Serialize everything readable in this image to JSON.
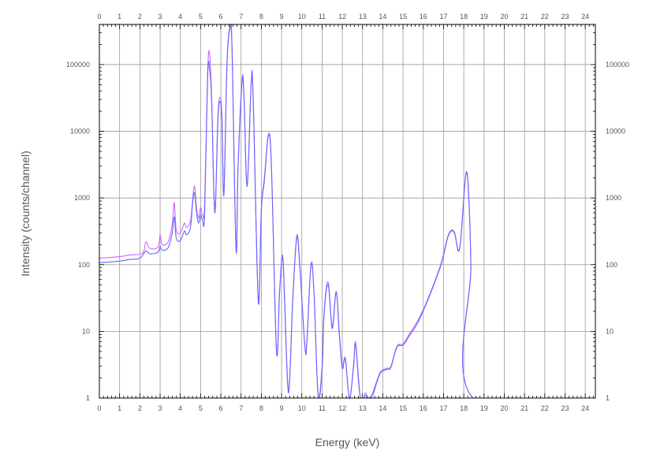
{
  "chart_data": {
    "type": "line",
    "xlabel": "Energy (keV)",
    "ylabel": "Intensity (counts/channel)",
    "xlim": [
      0,
      24.5
    ],
    "ylim": [
      1,
      400000
    ],
    "y_scale": "log",
    "grid": true,
    "x_ticks": [
      "0",
      "1",
      "2",
      "3",
      "4",
      "5",
      "6",
      "7",
      "8",
      "9",
      "10",
      "11",
      "12",
      "13",
      "14",
      "15",
      "16",
      "17",
      "18",
      "19",
      "20",
      "21",
      "22",
      "23",
      "24"
    ],
    "y_ticks": [
      "1",
      "10",
      "100",
      "1000",
      "10000",
      "100000"
    ],
    "series": [
      {
        "color": "#cc66ff",
        "points": [
          [
            0,
            125
          ],
          [
            1,
            132
          ],
          [
            1.5,
            140
          ],
          [
            2,
            143
          ],
          [
            2.2,
            160
          ],
          [
            2.3,
            220
          ],
          [
            2.5,
            175
          ],
          [
            2.9,
            185
          ],
          [
            3.0,
            280
          ],
          [
            3.1,
            200
          ],
          [
            3.4,
            220
          ],
          [
            3.6,
            400
          ],
          [
            3.7,
            850
          ],
          [
            3.8,
            330
          ],
          [
            4.0,
            300
          ],
          [
            4.2,
            420
          ],
          [
            4.3,
            360
          ],
          [
            4.5,
            450
          ],
          [
            4.6,
            900
          ],
          [
            4.7,
            1500
          ],
          [
            4.8,
            700
          ],
          [
            4.9,
            500
          ],
          [
            5.0,
            720
          ],
          [
            5.1,
            560
          ],
          [
            5.2,
            800
          ],
          [
            5.35,
            80000
          ],
          [
            5.45,
            140000
          ],
          [
            5.55,
            30000
          ],
          [
            5.7,
            650
          ],
          [
            5.85,
            15000
          ],
          [
            5.95,
            32000
          ],
          [
            6.05,
            18000
          ],
          [
            6.15,
            1200
          ],
          [
            6.3,
            100000
          ],
          [
            6.45,
            380000
          ],
          [
            6.55,
            200000
          ],
          [
            6.75,
            180
          ],
          [
            6.85,
            3000
          ],
          [
            7.05,
            60000
          ],
          [
            7.15,
            30000
          ],
          [
            7.3,
            1600
          ],
          [
            7.5,
            55000
          ],
          [
            7.6,
            30000
          ],
          [
            7.85,
            30
          ],
          [
            8.0,
            700
          ],
          [
            8.15,
            2000
          ],
          [
            8.35,
            9000
          ],
          [
            8.5,
            3000
          ],
          [
            8.75,
            5
          ],
          [
            8.9,
            40
          ],
          [
            9.05,
            140
          ],
          [
            9.15,
            30
          ],
          [
            9.3,
            1.7
          ],
          [
            9.4,
            2
          ],
          [
            9.55,
            30
          ],
          [
            9.75,
            270
          ],
          [
            9.9,
            100
          ],
          [
            10.15,
            6
          ],
          [
            10.25,
            7
          ],
          [
            10.45,
            100
          ],
          [
            10.6,
            40
          ],
          [
            10.8,
            1.2
          ],
          [
            11.0,
            3
          ],
          [
            11.1,
            20
          ],
          [
            11.3,
            55
          ],
          [
            11.5,
            12
          ],
          [
            11.7,
            40
          ],
          [
            11.85,
            10
          ],
          [
            12.0,
            3
          ],
          [
            12.15,
            4
          ],
          [
            12.35,
            0.5
          ],
          [
            12.55,
            3
          ],
          [
            12.65,
            7
          ],
          [
            12.8,
            2
          ],
          [
            12.9,
            1
          ],
          [
            13.05,
            1
          ],
          [
            13.15,
            1.2
          ],
          [
            13.3,
            0.8
          ],
          [
            13.5,
            1.2
          ],
          [
            13.7,
            1.8
          ],
          [
            13.9,
            2.5
          ],
          [
            14.2,
            2.8
          ],
          [
            14.4,
            3
          ],
          [
            14.7,
            6
          ],
          [
            15.0,
            6.5
          ],
          [
            15.3,
            9
          ],
          [
            15.7,
            14
          ],
          [
            16.1,
            25
          ],
          [
            16.5,
            50
          ],
          [
            16.9,
            110
          ],
          [
            17.2,
            260
          ],
          [
            17.4,
            330
          ],
          [
            17.55,
            300
          ],
          [
            17.8,
            180
          ],
          [
            18.1,
            2300
          ],
          [
            18.25,
            1000
          ],
          [
            18.35,
            100
          ],
          [
            18.45,
            1
          ],
          [
            24.5,
            1
          ]
        ]
      },
      {
        "color": "#6666ff",
        "points": [
          [
            0,
            107
          ],
          [
            1,
            113
          ],
          [
            1.5,
            120
          ],
          [
            2,
            125
          ],
          [
            2.3,
            160
          ],
          [
            2.5,
            145
          ],
          [
            2.9,
            155
          ],
          [
            3.0,
            190
          ],
          [
            3.1,
            165
          ],
          [
            3.4,
            180
          ],
          [
            3.6,
            300
          ],
          [
            3.7,
            520
          ],
          [
            3.8,
            250
          ],
          [
            4.0,
            230
          ],
          [
            4.2,
            320
          ],
          [
            4.3,
            280
          ],
          [
            4.5,
            360
          ],
          [
            4.6,
            800
          ],
          [
            4.7,
            1200
          ],
          [
            4.8,
            600
          ],
          [
            4.9,
            420
          ],
          [
            5.0,
            560
          ],
          [
            5.1,
            460
          ],
          [
            5.2,
            600
          ],
          [
            5.35,
            70000
          ],
          [
            5.45,
            80000
          ],
          [
            5.55,
            25000
          ],
          [
            5.7,
            600
          ],
          [
            5.85,
            13000
          ],
          [
            5.95,
            28000
          ],
          [
            6.05,
            16000
          ],
          [
            6.15,
            1100
          ],
          [
            6.3,
            90000
          ],
          [
            6.45,
            340000
          ],
          [
            6.55,
            180000
          ],
          [
            6.75,
            170
          ],
          [
            6.85,
            2800
          ],
          [
            7.05,
            55000
          ],
          [
            7.15,
            28000
          ],
          [
            7.3,
            1500
          ],
          [
            7.5,
            52000
          ],
          [
            7.6,
            28000
          ],
          [
            7.85,
            28
          ],
          [
            8.0,
            650
          ],
          [
            8.15,
            1800
          ],
          [
            8.35,
            8500
          ],
          [
            8.5,
            2800
          ],
          [
            8.75,
            5
          ],
          [
            8.9,
            38
          ],
          [
            9.05,
            130
          ],
          [
            9.15,
            28
          ],
          [
            9.3,
            1.6
          ],
          [
            9.4,
            1.9
          ],
          [
            9.55,
            28
          ],
          [
            9.75,
            250
          ],
          [
            9.9,
            95
          ],
          [
            10.15,
            6
          ],
          [
            10.25,
            7
          ],
          [
            10.45,
            95
          ],
          [
            10.6,
            38
          ],
          [
            10.8,
            1.1
          ],
          [
            11.0,
            2.6
          ],
          [
            11.1,
            18
          ],
          [
            11.3,
            50
          ],
          [
            11.5,
            11
          ],
          [
            11.7,
            38
          ],
          [
            11.85,
            9
          ],
          [
            12.0,
            2.8
          ],
          [
            12.15,
            3.8
          ],
          [
            12.35,
            0.5
          ],
          [
            12.55,
            2.8
          ],
          [
            12.65,
            6.5
          ],
          [
            12.8,
            1.8
          ],
          [
            12.9,
            0.9
          ],
          [
            13.05,
            0.9
          ],
          [
            13.15,
            1.1
          ],
          [
            13.3,
            0.7
          ],
          [
            13.5,
            1.1
          ],
          [
            13.7,
            1.7
          ],
          [
            13.9,
            2.4
          ],
          [
            14.2,
            2.7
          ],
          [
            14.4,
            2.9
          ],
          [
            14.7,
            5.8
          ],
          [
            15.0,
            6.2
          ],
          [
            15.3,
            8.5
          ],
          [
            15.7,
            13
          ],
          [
            16.1,
            24
          ],
          [
            16.5,
            48
          ],
          [
            16.9,
            105
          ],
          [
            17.2,
            250
          ],
          [
            17.4,
            320
          ],
          [
            17.55,
            290
          ],
          [
            17.8,
            175
          ],
          [
            18.1,
            2200
          ],
          [
            18.25,
            950
          ],
          [
            18.35,
            95
          ],
          [
            18.45,
            1
          ],
          [
            24.5,
            1
          ]
        ]
      }
    ]
  }
}
